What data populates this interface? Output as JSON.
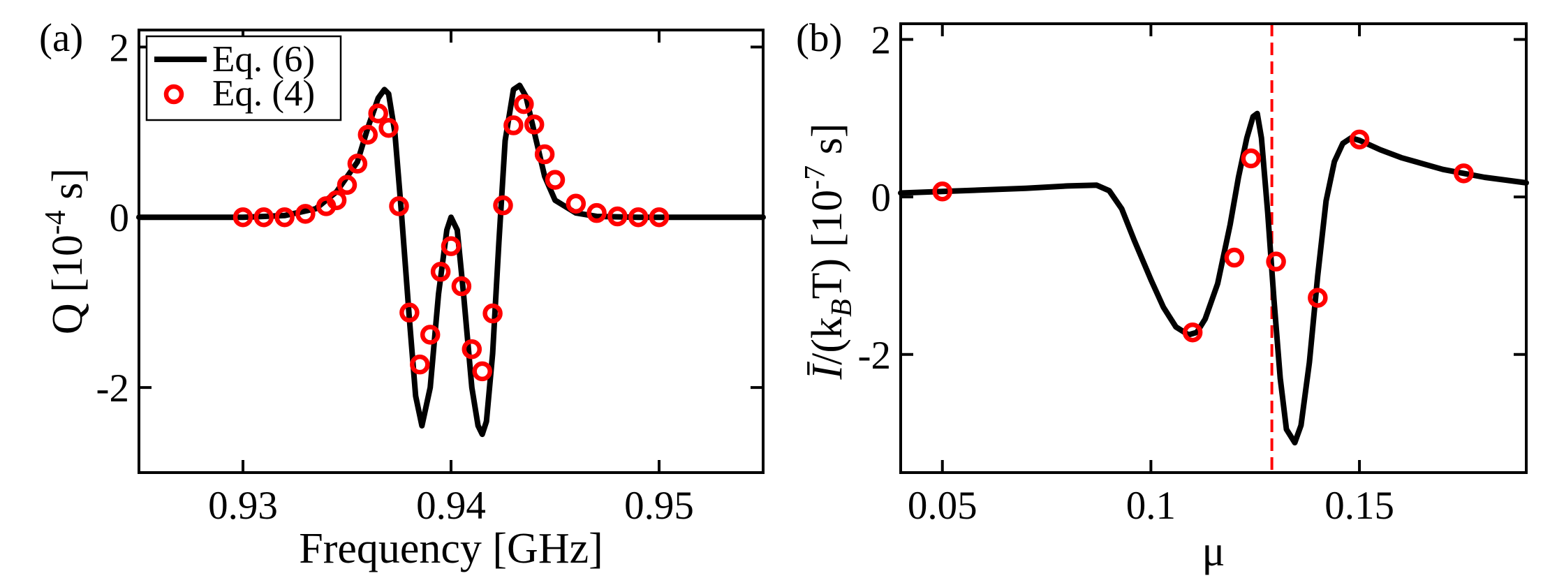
{
  "colors": {
    "curve": "#000000",
    "markers": "#ff0000",
    "vline": "#ff0000"
  },
  "chart_data": [
    {
      "type": "line",
      "panel_label": "(a)",
      "xlabel": "Frequency [GHz]",
      "ylabel": "Q [10^-4 s]",
      "ylabel_parts": {
        "pre": "Q [10",
        "sup": "-4",
        "post": " s]"
      },
      "xlim": [
        0.925,
        0.955
      ],
      "ylim": [
        -3,
        2.2
      ],
      "xticks": [
        0.93,
        0.94,
        0.95
      ],
      "xtick_labels": [
        "0.93",
        "0.94",
        "0.95"
      ],
      "yticks": [
        -2,
        0,
        2
      ],
      "ytick_labels": [
        "-2",
        "0",
        "2"
      ],
      "legend": {
        "location": "top-left",
        "entries": [
          "Eq. (6)",
          "Eq. (4)"
        ]
      },
      "series": [
        {
          "name": "Eq. (6)",
          "style": "line",
          "x": [
            0.925,
            0.93,
            0.932,
            0.9335,
            0.9345,
            0.9355,
            0.936,
            0.9365,
            0.9368,
            0.937,
            0.9373,
            0.9376,
            0.938,
            0.9383,
            0.9386,
            0.939,
            0.9394,
            0.9398,
            0.94,
            0.9403,
            0.9406,
            0.941,
            0.9413,
            0.9415,
            0.9417,
            0.942,
            0.9423,
            0.9426,
            0.943,
            0.9433,
            0.9436,
            0.944,
            0.9445,
            0.945,
            0.946,
            0.947,
            0.949,
            0.955
          ],
          "y": [
            0.0,
            0.0,
            0.02,
            0.1,
            0.3,
            0.65,
            1.05,
            1.4,
            1.5,
            1.45,
            1.0,
            0.1,
            -1.2,
            -2.1,
            -2.45,
            -2.0,
            -0.9,
            -0.15,
            0.0,
            -0.15,
            -0.9,
            -2.0,
            -2.45,
            -2.55,
            -2.4,
            -1.6,
            -0.3,
            0.9,
            1.5,
            1.55,
            1.42,
            1.0,
            0.48,
            0.2,
            0.05,
            0.01,
            0.0,
            0.0
          ]
        },
        {
          "name": "Eq. (4)",
          "style": "markers",
          "x": [
            0.93,
            0.931,
            0.932,
            0.933,
            0.934,
            0.9345,
            0.935,
            0.9355,
            0.936,
            0.9365,
            0.937,
            0.9375,
            0.938,
            0.9385,
            0.939,
            0.9395,
            0.94,
            0.9405,
            0.941,
            0.9415,
            0.942,
            0.9425,
            0.943,
            0.9435,
            0.944,
            0.9445,
            0.945,
            0.946,
            0.947,
            0.948,
            0.949,
            0.95
          ],
          "y": [
            0.0,
            0.0,
            0.0,
            0.04,
            0.13,
            0.2,
            0.38,
            0.63,
            0.97,
            1.22,
            1.05,
            0.13,
            -1.12,
            -1.73,
            -1.38,
            -0.64,
            -0.34,
            -0.81,
            -1.55,
            -1.81,
            -1.13,
            0.14,
            1.08,
            1.33,
            1.09,
            0.74,
            0.44,
            0.16,
            0.05,
            0.01,
            0.0,
            0.0
          ]
        }
      ]
    },
    {
      "type": "line",
      "panel_label": "(b)",
      "xlabel": "μ",
      "ylabel": "Ī/(k_B T) [10^-7 s]",
      "ylabel_parts": {
        "symbol": "Ī",
        "mid": "/(k",
        "sub": "B",
        "t": "T) [10",
        "sup": "-7",
        "post": " s]"
      },
      "xlim": [
        0.04,
        0.19
      ],
      "ylim": [
        -3.5,
        2.2
      ],
      "xticks": [
        0.05,
        0.1,
        0.15
      ],
      "xtick_labels": [
        "0.05",
        "0.1",
        "0.15"
      ],
      "yticks": [
        -2,
        0,
        2
      ],
      "ytick_labels": [
        "-2",
        "0",
        "2"
      ],
      "vline": {
        "x": 0.129,
        "style": "dashed"
      },
      "series": [
        {
          "name": "Eq. (6)",
          "style": "line",
          "x": [
            0.04,
            0.05,
            0.06,
            0.07,
            0.08,
            0.087,
            0.09,
            0.093,
            0.096,
            0.1,
            0.103,
            0.106,
            0.109,
            0.111,
            0.113,
            0.116,
            0.119,
            0.121,
            0.123,
            0.1245,
            0.1255,
            0.1265,
            0.128,
            0.1295,
            0.131,
            0.1325,
            0.1345,
            0.136,
            0.138,
            0.14,
            0.142,
            0.144,
            0.146,
            0.148,
            0.15,
            0.155,
            0.16,
            0.17,
            0.18,
            0.19
          ],
          "y": [
            0.05,
            0.07,
            0.09,
            0.11,
            0.14,
            0.15,
            0.08,
            -0.15,
            -0.55,
            -1.05,
            -1.4,
            -1.65,
            -1.75,
            -1.72,
            -1.55,
            -1.1,
            -0.35,
            0.25,
            0.75,
            1.02,
            1.06,
            0.75,
            -0.2,
            -1.3,
            -2.3,
            -2.95,
            -3.12,
            -2.9,
            -2.1,
            -1.0,
            -0.05,
            0.45,
            0.68,
            0.75,
            0.72,
            0.6,
            0.5,
            0.35,
            0.25,
            0.18
          ]
        },
        {
          "name": "Eq. (4)",
          "style": "markers",
          "x": [
            0.05,
            0.11,
            0.12,
            0.124,
            0.13,
            0.14,
            0.15,
            0.175
          ],
          "y": [
            0.07,
            -1.72,
            -0.77,
            0.49,
            -0.82,
            -1.28,
            0.73,
            0.3
          ]
        }
      ]
    }
  ]
}
